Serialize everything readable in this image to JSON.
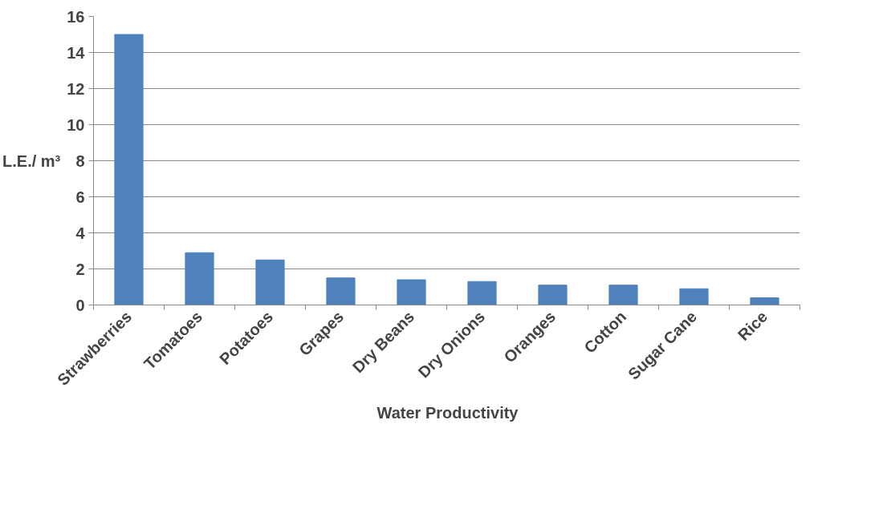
{
  "chart_data": {
    "type": "bar",
    "ylabel": "L.E./ m³",
    "categories": [
      "Strawberries",
      "Tomatoes",
      "Potatoes",
      "Grapes",
      "Dry Beans",
      "Dry Onions",
      "Oranges",
      "Cotton",
      "Sugar Cane",
      "Rice"
    ],
    "series": [
      {
        "name": "Water Productivity",
        "color": "#4f81bd",
        "values": [
          15,
          2.9,
          2.5,
          1.5,
          1.4,
          1.3,
          1.1,
          1.1,
          0.9,
          0.4
        ]
      }
    ],
    "ylim": [
      0,
      16
    ],
    "yticks": [
      0,
      2,
      4,
      6,
      8,
      10,
      12,
      14,
      16
    ],
    "grid": "y",
    "legend": "bottom"
  }
}
